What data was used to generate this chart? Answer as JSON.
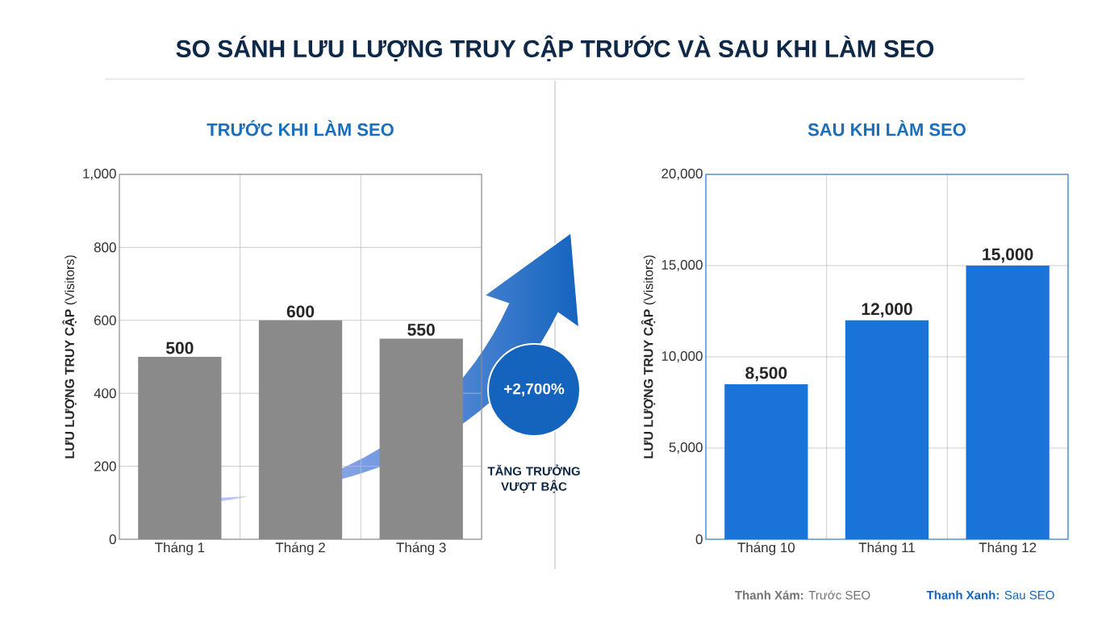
{
  "chart_data": [
    {
      "type": "other",
      "title": "SO SÁNH LƯU LƯỢNG TRUY CẬP TRƯỚC VÀ SAU KHI LÀM SEO",
      "annotations": [
        "+2,700%",
        "TĂNG TRƯỞNG VƯỢT BẬC",
        "**Thanh Xám:** Trước SEO",
        "**Thanh Xanh:** Sau SEO"
      ]
    },
    {
      "type": "bar",
      "title": "TRƯỚC KHI LÀM SEO",
      "ylabel": "**LƯU LƯỢNG TRUY CẬP** (Visitors)",
      "categories": [
        "Tháng 1",
        "Tháng 2",
        "Tháng 3"
      ],
      "values": [
        500,
        600,
        550
      ],
      "color": "#8a8a8a",
      "ylim": [
        0,
        1000
      ],
      "yticks": [
        0,
        200,
        400,
        600,
        800,
        {
          "value": 1000,
          "label": "1,000"
        }
      ],
      "grid": true,
      "data_labels": true
    },
    {
      "type": "bar",
      "title": "SAU KHI LÀM SEO",
      "ylabel": "**LƯU LƯỢNG TRUY CẬP** (Visitors)",
      "categories": [
        "Tháng 10",
        "Tháng 11",
        "Tháng 12"
      ],
      "values": [
        8500,
        12000,
        15000
      ],
      "value_labels": [
        "8,500",
        "12,000",
        "15,000"
      ],
      "color": "#1a73d9",
      "ylim": [
        0,
        20000
      ],
      "yticks": [
        0,
        {
          "value": 5000,
          "label": "5,000"
        },
        {
          "value": 10000,
          "label": "10,000"
        },
        {
          "value": 15000,
          "label": "15,000"
        },
        {
          "value": 20000,
          "label": "20,000"
        }
      ],
      "grid": true
    }
  ]
}
